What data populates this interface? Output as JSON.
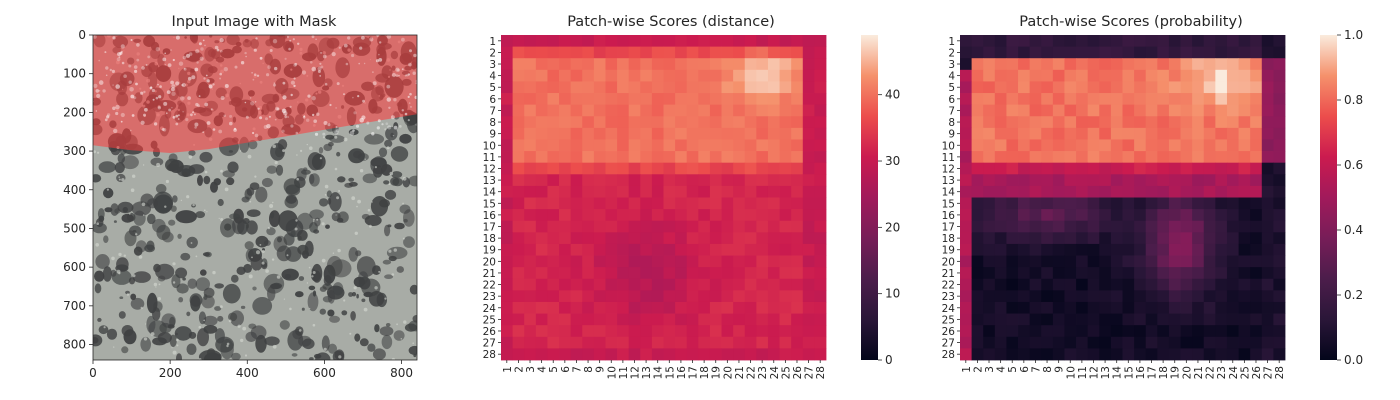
{
  "chart_data": [
    {
      "type": "image",
      "title": "Input Image with Mask",
      "xlabel": "",
      "ylabel": "",
      "xlim": [
        0,
        840
      ],
      "ylim": [
        840,
        0
      ],
      "xticks": [
        0,
        200,
        400,
        600,
        800
      ],
      "yticks": [
        0,
        100,
        200,
        300,
        400,
        500,
        600,
        700,
        800
      ],
      "mask_boundary": [
        [
          0,
          285
        ],
        [
          100,
          298
        ],
        [
          200,
          305
        ],
        [
          300,
          295
        ],
        [
          400,
          278
        ],
        [
          500,
          262
        ],
        [
          600,
          245
        ],
        [
          700,
          228
        ],
        [
          840,
          205
        ]
      ],
      "mask_color": "#ff3b3b",
      "background_color": "#a8aca6",
      "spot_color": "#3f4142"
    },
    {
      "type": "heatmap",
      "title": "Patch-wise Scores (distance)",
      "xlabel": "",
      "ylabel": "",
      "x_categories": [
        "1",
        "2",
        "3",
        "4",
        "5",
        "6",
        "7",
        "8",
        "9",
        "10",
        "11",
        "12",
        "13",
        "14",
        "15",
        "16",
        "17",
        "18",
        "19",
        "20",
        "21",
        "22",
        "23",
        "24",
        "25",
        "26",
        "27",
        "28"
      ],
      "y_categories": [
        "1",
        "2",
        "3",
        "4",
        "5",
        "6",
        "7",
        "8",
        "9",
        "10",
        "11",
        "12",
        "13",
        "14",
        "15",
        "16",
        "17",
        "18",
        "19",
        "20",
        "21",
        "22",
        "23",
        "24",
        "25",
        "26",
        "27",
        "28"
      ],
      "value_range": [
        0,
        49
      ],
      "colorbar_ticks": [
        0,
        10,
        20,
        30,
        40
      ],
      "colormap": "rocket",
      "summary": {
        "border_value": 30,
        "top_band_rows": [
          3,
          11
        ],
        "top_band_value": 40,
        "hotspot": {
          "rows": [
            3,
            5
          ],
          "cols": [
            21,
            25
          ],
          "value": 48
        },
        "lower_region_value": 32,
        "dip_center": {
          "row": 21,
          "col": 13,
          "value": 27
        }
      }
    },
    {
      "type": "heatmap",
      "title": "Patch-wise Scores (probability)",
      "xlabel": "",
      "ylabel": "",
      "x_categories": [
        "1",
        "2",
        "3",
        "4",
        "5",
        "6",
        "7",
        "8",
        "9",
        "10",
        "11",
        "12",
        "13",
        "14",
        "15",
        "16",
        "17",
        "18",
        "19",
        "20",
        "21",
        "22",
        "23",
        "24",
        "25",
        "26",
        "27",
        "28"
      ],
      "y_categories": [
        "1",
        "2",
        "3",
        "4",
        "5",
        "6",
        "7",
        "8",
        "9",
        "10",
        "11",
        "12",
        "13",
        "14",
        "15",
        "16",
        "17",
        "18",
        "19",
        "20",
        "21",
        "22",
        "23",
        "24",
        "25",
        "26",
        "27",
        "28"
      ],
      "value_range": [
        0,
        1
      ],
      "colorbar_ticks": [
        0.0,
        0.2,
        0.4,
        0.6,
        0.8,
        1.0
      ],
      "colormap": "rocket",
      "summary": {
        "top_band_rows": [
          3,
          11
        ],
        "top_band_value": 0.82,
        "hotspot": {
          "rows": [
            3,
            6
          ],
          "cols": [
            20,
            26
          ],
          "value": 0.97
        },
        "transition_rows": [
          12,
          14
        ],
        "lower_region_value": 0.05,
        "mid_cluster": {
          "rows": [
            15,
            22
          ],
          "cols": [
            16,
            22
          ],
          "value": 0.45
        }
      }
    }
  ]
}
